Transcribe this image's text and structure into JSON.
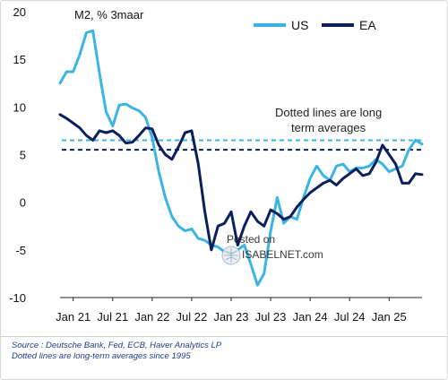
{
  "chart_data": {
    "type": "line",
    "title": "M2, % 3maar",
    "x_tick_labels": [
      "Jan 21",
      "Jul 21",
      "Jan 22",
      "Jul 22",
      "Jan 23",
      "Jul 23",
      "Jan 24",
      "Jul 24",
      "Jan 25"
    ],
    "ylim": [
      -10,
      20
    ],
    "y_ticks": [
      -10,
      -5,
      0,
      5,
      10,
      15,
      20
    ],
    "legend_position": "top-right",
    "grid": false,
    "series": [
      {
        "name": "US",
        "color": "#3bb4e5",
        "x": [
          "2020-11",
          "2020-12",
          "2021-01",
          "2021-02",
          "2021-03",
          "2021-04",
          "2021-05",
          "2021-06",
          "2021-07",
          "2021-08",
          "2021-09",
          "2021-10",
          "2021-11",
          "2021-12",
          "2022-01",
          "2022-02",
          "2022-03",
          "2022-04",
          "2022-05",
          "2022-06",
          "2022-07",
          "2022-08",
          "2022-09",
          "2022-10",
          "2022-11",
          "2022-12",
          "2023-01",
          "2023-02",
          "2023-03",
          "2023-04",
          "2023-05",
          "2023-06",
          "2023-07",
          "2023-08",
          "2023-09",
          "2023-10",
          "2023-11",
          "2023-12",
          "2024-01",
          "2024-02",
          "2024-03",
          "2024-04",
          "2024-05",
          "2024-06",
          "2024-07",
          "2024-08",
          "2024-09",
          "2024-10",
          "2024-11",
          "2024-12",
          "2025-01",
          "2025-02",
          "2025-03",
          "2025-04",
          "2025-05",
          "2025-06"
        ],
        "values": [
          12.5,
          13.7,
          13.7,
          15.5,
          17.8,
          18.0,
          13.5,
          9.5,
          8.0,
          10.2,
          10.3,
          9.9,
          9.6,
          8.9,
          6.8,
          3.2,
          0.5,
          -1.5,
          -2.5,
          -3.0,
          -2.8,
          -3.8,
          -4.0,
          -4.5,
          -4.7,
          -5.2,
          -5.5,
          -5.0,
          -4.5,
          -6.5,
          -8.7,
          -7.5,
          -3.0,
          0.5,
          -2.2,
          -1.5,
          -1.8,
          0.5,
          2.5,
          3.8,
          2.8,
          2.3,
          3.8,
          4.0,
          3.2,
          3.6,
          3.6,
          3.8,
          4.5,
          4.0,
          3.2,
          3.5,
          3.8,
          5.5,
          6.5,
          6.1
        ]
      },
      {
        "name": "EA",
        "color": "#0a1f5c",
        "x": [
          "2020-11",
          "2020-12",
          "2021-01",
          "2021-02",
          "2021-03",
          "2021-04",
          "2021-05",
          "2021-06",
          "2021-07",
          "2021-08",
          "2021-09",
          "2021-10",
          "2021-11",
          "2021-12",
          "2022-01",
          "2022-02",
          "2022-03",
          "2022-04",
          "2022-05",
          "2022-06",
          "2022-07",
          "2022-08",
          "2022-09",
          "2022-10",
          "2022-11",
          "2022-12",
          "2023-01",
          "2023-02",
          "2023-03",
          "2023-04",
          "2023-05",
          "2023-06",
          "2023-07",
          "2023-08",
          "2023-09",
          "2023-10",
          "2023-11",
          "2023-12",
          "2024-01",
          "2024-02",
          "2024-03",
          "2024-04",
          "2024-05",
          "2024-06",
          "2024-07",
          "2024-08",
          "2024-09",
          "2024-10",
          "2024-11",
          "2024-12",
          "2025-01",
          "2025-02",
          "2025-03",
          "2025-04",
          "2025-05",
          "2025-06"
        ],
        "values": [
          9.2,
          8.8,
          8.3,
          7.8,
          7.0,
          6.5,
          7.5,
          7.3,
          7.5,
          7.0,
          6.2,
          6.3,
          7.0,
          7.8,
          7.7,
          6.0,
          5.0,
          4.5,
          5.8,
          7.3,
          7.5,
          4.0,
          -1.0,
          -5.0,
          -2.5,
          -2.2,
          -1.0,
          -4.5,
          -2.5,
          -1.0,
          -2.0,
          -2.5,
          -0.8,
          -1.2,
          -1.8,
          -1.5,
          -0.5,
          0.3,
          1.0,
          1.5,
          2.0,
          2.3,
          1.8,
          2.5,
          3.0,
          3.5,
          2.8,
          3.0,
          4.2,
          6.0,
          5.0,
          4.0,
          2.0,
          2.0,
          3.0,
          2.9
        ]
      }
    ],
    "reference_lines": [
      {
        "series": "US",
        "value": 6.5,
        "style": "dotted",
        "color": "#3bb4e5"
      },
      {
        "series": "EA",
        "value": 5.5,
        "style": "dotted",
        "color": "#0a1f5c"
      }
    ],
    "annotation": [
      "Dotted lines are long",
      "term averages"
    ]
  },
  "watermark": {
    "line1": "Posted on",
    "line2": "ISABELNET.com"
  },
  "footer": {
    "source": "Source : Deutsche Bank, Fed, ECB, Haver Analytics LP",
    "note": "Dotted lines are long-term averages since 1995"
  }
}
